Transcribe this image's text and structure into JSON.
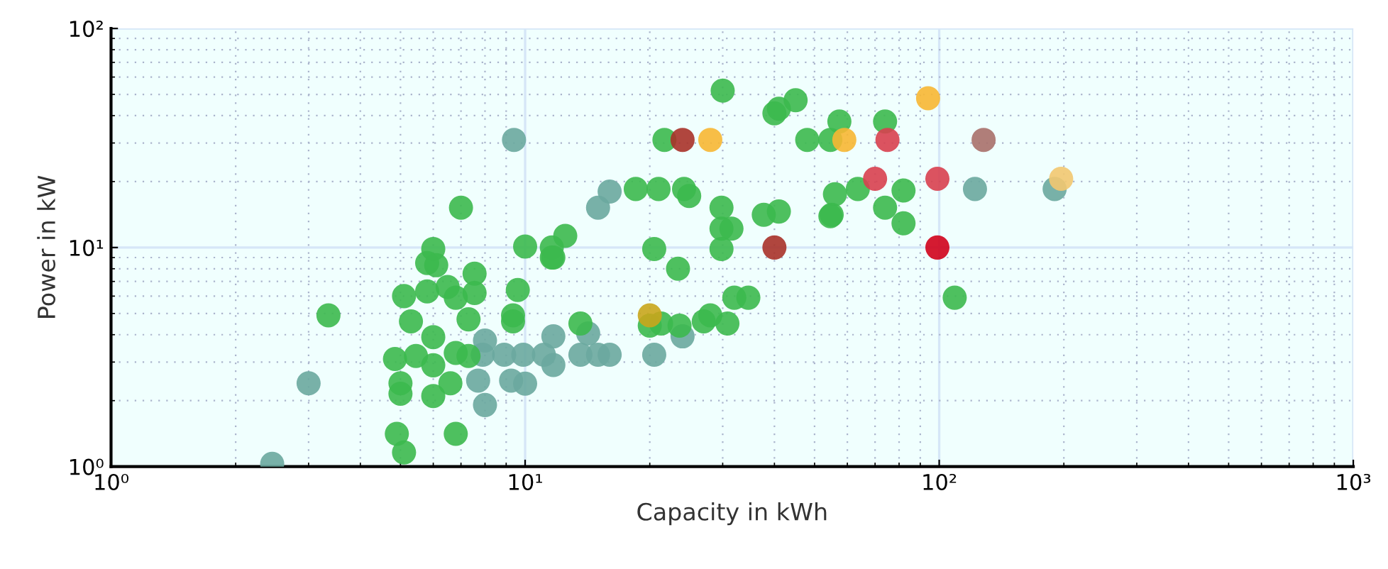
{
  "chart_data": {
    "type": "scatter",
    "xlabel": "Capacity in kWh",
    "ylabel": "Power in kW",
    "log": "xy",
    "grid": true,
    "marker": "circle",
    "xlim": [
      1,
      1000
    ],
    "ylim": [
      1,
      100
    ],
    "xticks": [
      {
        "value": 1,
        "label": "10⁰"
      },
      {
        "value": 10,
        "label": "10¹"
      },
      {
        "value": 100,
        "label": "10²"
      },
      {
        "value": 1000,
        "label": "10³"
      }
    ],
    "yticks": [
      {
        "value": 1,
        "label": "10⁰"
      },
      {
        "value": 10,
        "label": "10¹"
      },
      {
        "value": 100,
        "label": "10²"
      }
    ],
    "series": [
      {
        "color": "#6aa89f",
        "x": [
          2.45,
          3.0,
          9.4,
          16,
          15,
          7.7,
          8.0,
          8.0,
          7.9,
          8.9,
          9.25,
          9.9,
          10,
          11.1,
          11.7,
          11.7,
          13.6,
          14.2,
          15,
          16,
          20.5,
          24,
          122,
          190
        ],
        "values": [
          1.03,
          2.4,
          31,
          18,
          15.2,
          2.47,
          3.76,
          1.91,
          3.24,
          3.24,
          2.47,
          3.24,
          2.39,
          3.24,
          3.93,
          2.91,
          3.24,
          4.05,
          3.24,
          3.24,
          3.24,
          3.93,
          18.5,
          18.5
        ]
      },
      {
        "color": "#3cb94e",
        "x": [
          7.0,
          10,
          6.0,
          5.8,
          6.1,
          5.1,
          5.8,
          6.5,
          6.8,
          7.55,
          7.55,
          9.6,
          9.35,
          9.35,
          7.3,
          5.3,
          3.35,
          6.0,
          4.85,
          5.45,
          6.0,
          6.8,
          7.3,
          5.0,
          5.0,
          6.0,
          6.6,
          4.9,
          5.1,
          6.8,
          11.6,
          40,
          21.7,
          48,
          18.5,
          21,
          24.2,
          24.9,
          29.8,
          29.8,
          31.5,
          29.8,
          37.7,
          41,
          55,
          12.5,
          11.6,
          11.7,
          20.5,
          23.4,
          32,
          34.6,
          20,
          21.3,
          23.6,
          27,
          28,
          30.8,
          13.6,
          56,
          45,
          57.4,
          74,
          54.6,
          63.6,
          54.6,
          74,
          82,
          82,
          109,
          30,
          41
        ],
        "values": [
          15.2,
          10.1,
          9.85,
          8.5,
          8.3,
          6.0,
          6.3,
          6.6,
          5.9,
          7.6,
          6.2,
          6.4,
          4.9,
          4.6,
          4.7,
          4.6,
          4.9,
          3.9,
          3.1,
          3.2,
          2.9,
          3.3,
          3.2,
          2.4,
          2.15,
          2.1,
          2.4,
          1.41,
          1.16,
          1.41,
          9.0,
          41,
          31,
          31,
          18.5,
          18.5,
          18.5,
          17.2,
          15.2,
          12.2,
          12.2,
          9.85,
          14.1,
          14.6,
          14.1,
          11.3,
          10,
          9.0,
          9.85,
          8.0,
          5.9,
          5.9,
          4.4,
          4.5,
          4.4,
          4.6,
          4.9,
          4.5,
          4.5,
          17.5,
          47,
          37.6,
          37.6,
          31,
          18.5,
          13.9,
          15.2,
          18.2,
          12.9,
          5.9,
          52,
          43
        ]
      },
      {
        "color": "#f7b733",
        "x": [
          28,
          59,
          94
        ],
        "values": [
          31,
          31,
          48
        ]
      },
      {
        "color": "#f2c870",
        "x": [
          197
        ],
        "values": [
          20.6
        ]
      },
      {
        "color": "#c9a61c",
        "x": [
          20
        ],
        "values": [
          4.9
        ]
      },
      {
        "color": "#a83229",
        "x": [
          24,
          40
        ],
        "values": [
          31,
          10
        ]
      },
      {
        "color": "#d8404f",
        "x": [
          75,
          70,
          99
        ],
        "values": [
          31,
          20.6,
          20.6
        ]
      },
      {
        "color": "#d0021b",
        "x": [
          99
        ],
        "values": [
          10
        ]
      },
      {
        "color": "#a8706a",
        "x": [
          128
        ],
        "values": [
          31
        ]
      }
    ]
  }
}
